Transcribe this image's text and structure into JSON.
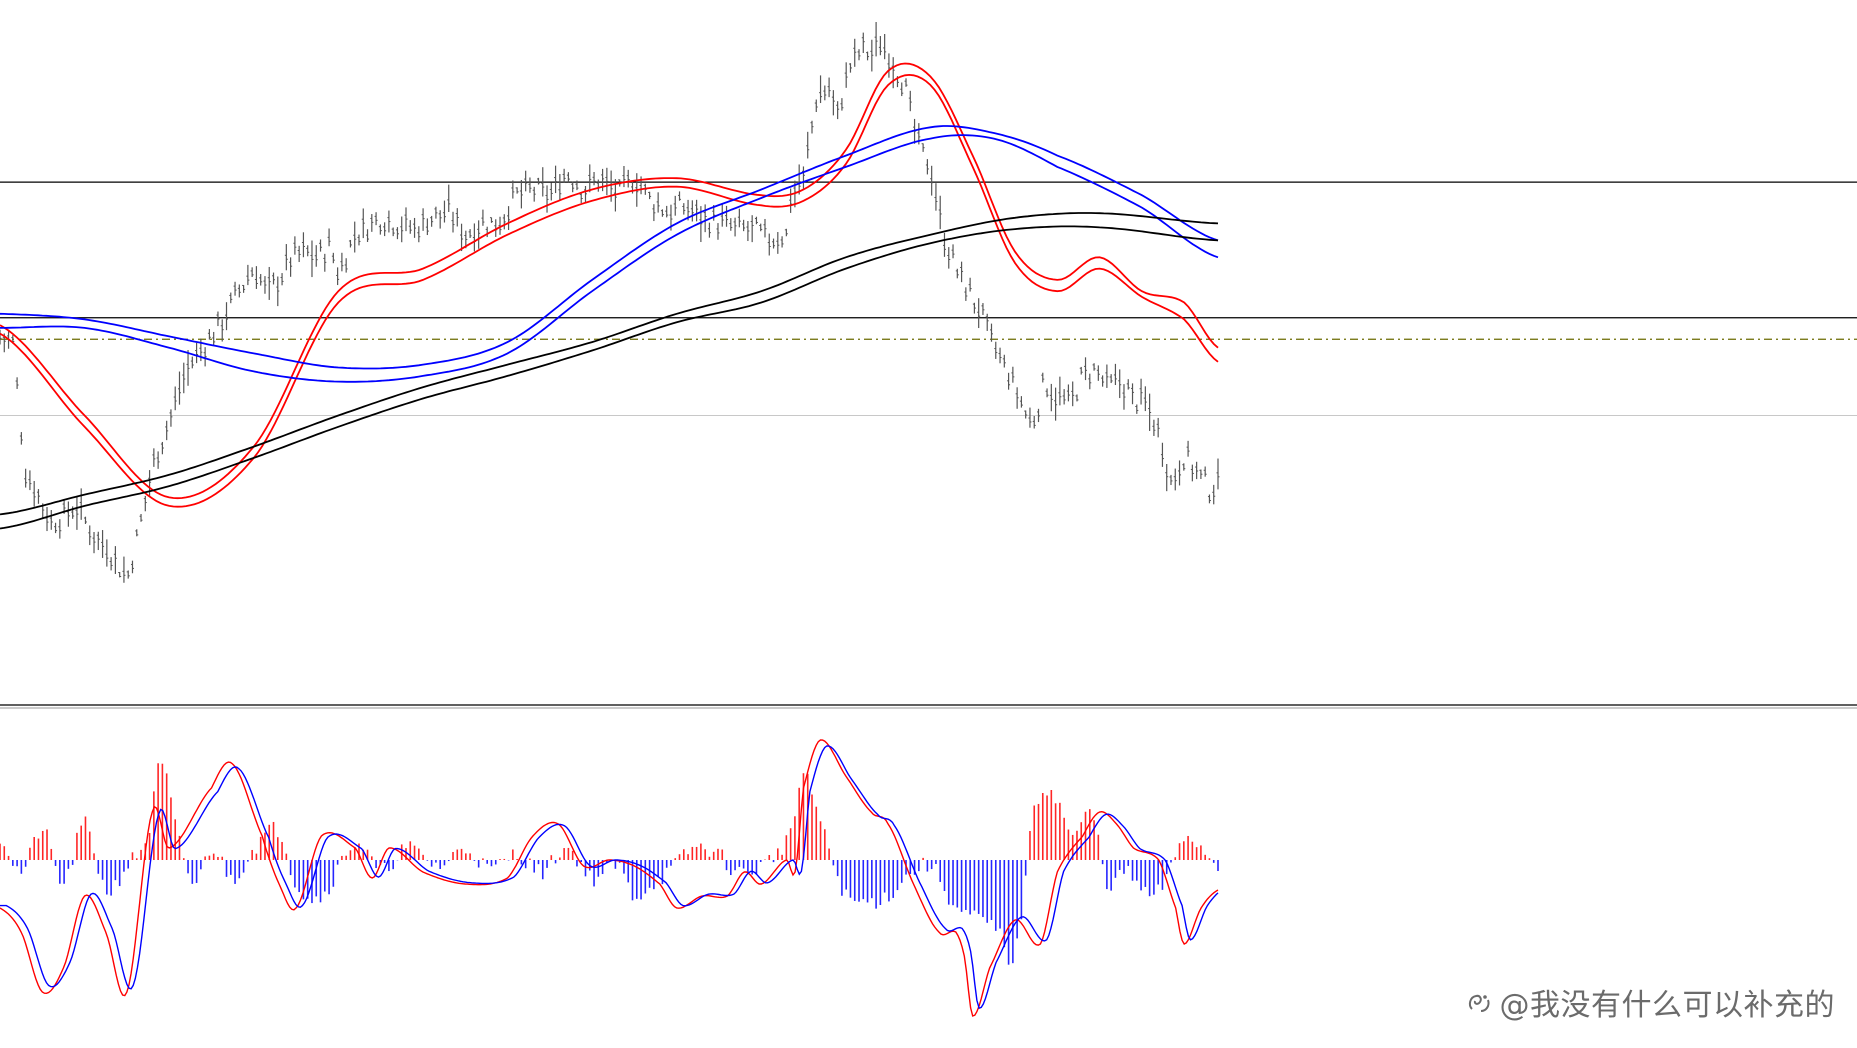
{
  "chart_data": [
    {
      "type": "line",
      "panel": "price",
      "title": "",
      "xlabel": "",
      "ylabel": "",
      "axes_shown": false,
      "x_range": [
        0,
        288
      ],
      "ylim": [
        0,
        1000
      ],
      "colors": {
        "price": "#555555",
        "ma_fast": "#ff0000",
        "ma_mid": "#0000ff",
        "ma_slow": "#000000",
        "hline": "#000000",
        "dashline": "#6b6b00",
        "grayline": "#c8c8c8"
      },
      "price_anchors": {
        "x": [
          0,
          3,
          6,
          9,
          12,
          15,
          18,
          22,
          26,
          30,
          33,
          36,
          40,
          44,
          48,
          52,
          56,
          60,
          63,
          66,
          69,
          72,
          75,
          78,
          80,
          84,
          88,
          90,
          94,
          98,
          102,
          106,
          110,
          114,
          118,
          122,
          126,
          130,
          134,
          138,
          142,
          146,
          150,
          154,
          158,
          162,
          166,
          170,
          174,
          178,
          182,
          186,
          187,
          190,
          193,
          196,
          198,
          201,
          204,
          206,
          208,
          211,
          214,
          217,
          220,
          223,
          226,
          229,
          232,
          235,
          238,
          241,
          244,
          247,
          250,
          253,
          256,
          259,
          262,
          265,
          268,
          271,
          274,
          277,
          280,
          283,
          286,
          288
        ],
        "y": [
          440,
          430,
          200,
          160,
          110,
          120,
          140,
          90,
          60,
          10,
          100,
          210,
          290,
          380,
          420,
          460,
          515,
          560,
          520,
          540,
          580,
          590,
          580,
          600,
          550,
          620,
          640,
          650,
          640,
          630,
          650,
          660,
          620,
          640,
          640,
          690,
          700,
          690,
          730,
          700,
          720,
          690,
          720,
          680,
          660,
          670,
          650,
          640,
          630,
          630,
          610,
          620,
          690,
          720,
          860,
          880,
          830,
          920,
          950,
          940,
          960,
          930,
          880,
          780,
          740,
          620,
          560,
          520,
          480,
          420,
          380,
          330,
          280,
          360,
          330,
          320,
          370,
          380,
          350,
          360,
          330,
          320,
          270,
          180,
          230,
          200,
          170,
          175
        ]
      },
      "moving_averages": [
        {
          "role": "fast-1",
          "x": [
            0,
            20,
            40,
            60,
            80,
            100,
            120,
            140,
            160,
            180,
            190,
            200,
            210,
            220,
            230,
            240,
            250,
            260,
            270,
            280,
            288
          ],
          "y": [
            460,
            300,
            155,
            245,
            520,
            560,
            640,
            700,
            720,
            690,
            700,
            770,
            910,
            900,
            760,
            590,
            540,
            580,
            520,
            500,
            420
          ]
        },
        {
          "role": "fast-2",
          "x": [
            0,
            20,
            40,
            60,
            80,
            100,
            120,
            140,
            160,
            180,
            190,
            200,
            210,
            220,
            230,
            240,
            250,
            260,
            270,
            280,
            288
          ],
          "y": [
            445,
            280,
            140,
            225,
            500,
            540,
            620,
            680,
            705,
            672,
            680,
            745,
            885,
            885,
            740,
            570,
            520,
            560,
            510,
            470,
            395
          ]
        },
        {
          "role": "mid-1",
          "x": [
            0,
            20,
            40,
            60,
            80,
            100,
            120,
            140,
            160,
            180,
            200,
            220,
            235,
            250,
            270,
            288
          ],
          "y": [
            480,
            470,
            440,
            410,
            385,
            390,
            430,
            540,
            640,
            700,
            760,
            810,
            800,
            760,
            690,
            610
          ]
        },
        {
          "role": "mid-2",
          "x": [
            0,
            20,
            40,
            60,
            80,
            100,
            120,
            140,
            160,
            180,
            200,
            220,
            235,
            250,
            270,
            288
          ],
          "y": [
            455,
            455,
            420,
            378,
            360,
            370,
            410,
            520,
            620,
            685,
            740,
            790,
            790,
            740,
            668,
            580
          ]
        },
        {
          "role": "slow-1",
          "x": [
            0,
            20,
            40,
            60,
            80,
            100,
            120,
            140,
            160,
            180,
            200,
            220,
            240,
            260,
            288
          ],
          "y": [
            125,
            160,
            195,
            245,
            300,
            350,
            390,
            430,
            480,
            520,
            580,
            620,
            650,
            658,
            640
          ]
        },
        {
          "role": "slow-2",
          "x": [
            0,
            20,
            40,
            60,
            80,
            100,
            120,
            140,
            160,
            180,
            200,
            220,
            240,
            260,
            288
          ],
          "y": [
            100,
            140,
            175,
            225,
            280,
            330,
            370,
            415,
            465,
            500,
            560,
            605,
            630,
            633,
            610
          ]
        }
      ],
      "horizontal_lines": [
        {
          "role": "resistance",
          "y": 713
        },
        {
          "role": "support",
          "y": 473
        },
        {
          "role": "dash-dot",
          "y": 435
        },
        {
          "role": "gray",
          "y": 300
        }
      ]
    },
    {
      "type": "bar",
      "panel": "oscillator",
      "title": "",
      "xlabel": "",
      "ylabel": "",
      "axes_shown": false,
      "x_range": [
        0,
        288
      ],
      "ylim": [
        -150,
        100
      ],
      "colors": {
        "positive": "#ff0000",
        "negative": "#0000ff",
        "signal": "#ff0000",
        "main": "#0000ff"
      },
      "histogram_anchors": {
        "x": [
          0,
          5,
          10,
          15,
          20,
          25,
          30,
          35,
          38,
          42,
          46,
          50,
          55,
          60,
          66,
          70,
          76,
          84,
          90,
          96,
          104,
          110,
          116,
          122,
          128,
          134,
          140,
          146,
          150,
          154,
          158,
          164,
          170,
          174,
          180,
          186,
          188,
          190,
          196,
          200,
          205,
          210,
          214,
          220,
          226,
          232,
          236,
          240,
          244,
          248,
          254,
          258,
          262,
          266,
          272,
          276,
          280,
          284,
          288
        ],
        "y": [
          20,
          -10,
          25,
          -20,
          30,
          -25,
          -5,
          20,
          80,
          20,
          -20,
          10,
          -15,
          10,
          25,
          -20,
          -30,
          15,
          -10,
          10,
          -5,
          10,
          -8,
          5,
          -10,
          10,
          -15,
          -5,
          -30,
          -20,
          -10,
          10,
          5,
          -10,
          -5,
          15,
          40,
          70,
          10,
          -30,
          -35,
          -30,
          -15,
          -5,
          -40,
          -50,
          -60,
          -80,
          30,
          60,
          20,
          40,
          -20,
          -10,
          -30,
          -15,
          20,
          10,
          -5
        ]
      },
      "signal_line_anchors": {
        "x": [
          0,
          5,
          10,
          15,
          20,
          25,
          30,
          36,
          40,
          50,
          55,
          62,
          66,
          70,
          76,
          84,
          88,
          92,
          100,
          110,
          120,
          126,
          132,
          138,
          144,
          150,
          156,
          160,
          166,
          172,
          176,
          180,
          186,
          188,
          190,
          194,
          200,
          206,
          210,
          216,
          222,
          226,
          228,
          230,
          234,
          240,
          246,
          250,
          256,
          260,
          264,
          268,
          274,
          278,
          280,
          284,
          288
        ],
        "y": [
          -40,
          -60,
          -110,
          -90,
          -30,
          -60,
          -110,
          40,
          10,
          60,
          80,
          20,
          -20,
          -40,
          20,
          10,
          -15,
          10,
          -10,
          -20,
          -15,
          20,
          30,
          -5,
          0,
          -5,
          -20,
          -40,
          -30,
          -30,
          -10,
          -20,
          0,
          -10,
          60,
          100,
          70,
          40,
          30,
          -20,
          -60,
          -60,
          -80,
          -130,
          -90,
          -50,
          -70,
          -10,
          20,
          40,
          30,
          10,
          0,
          -40,
          -70,
          -40,
          -25
        ]
      }
    }
  ],
  "watermark": {
    "text": "@我没有什么可以补充的",
    "icon": "watermark-logo-icon"
  }
}
